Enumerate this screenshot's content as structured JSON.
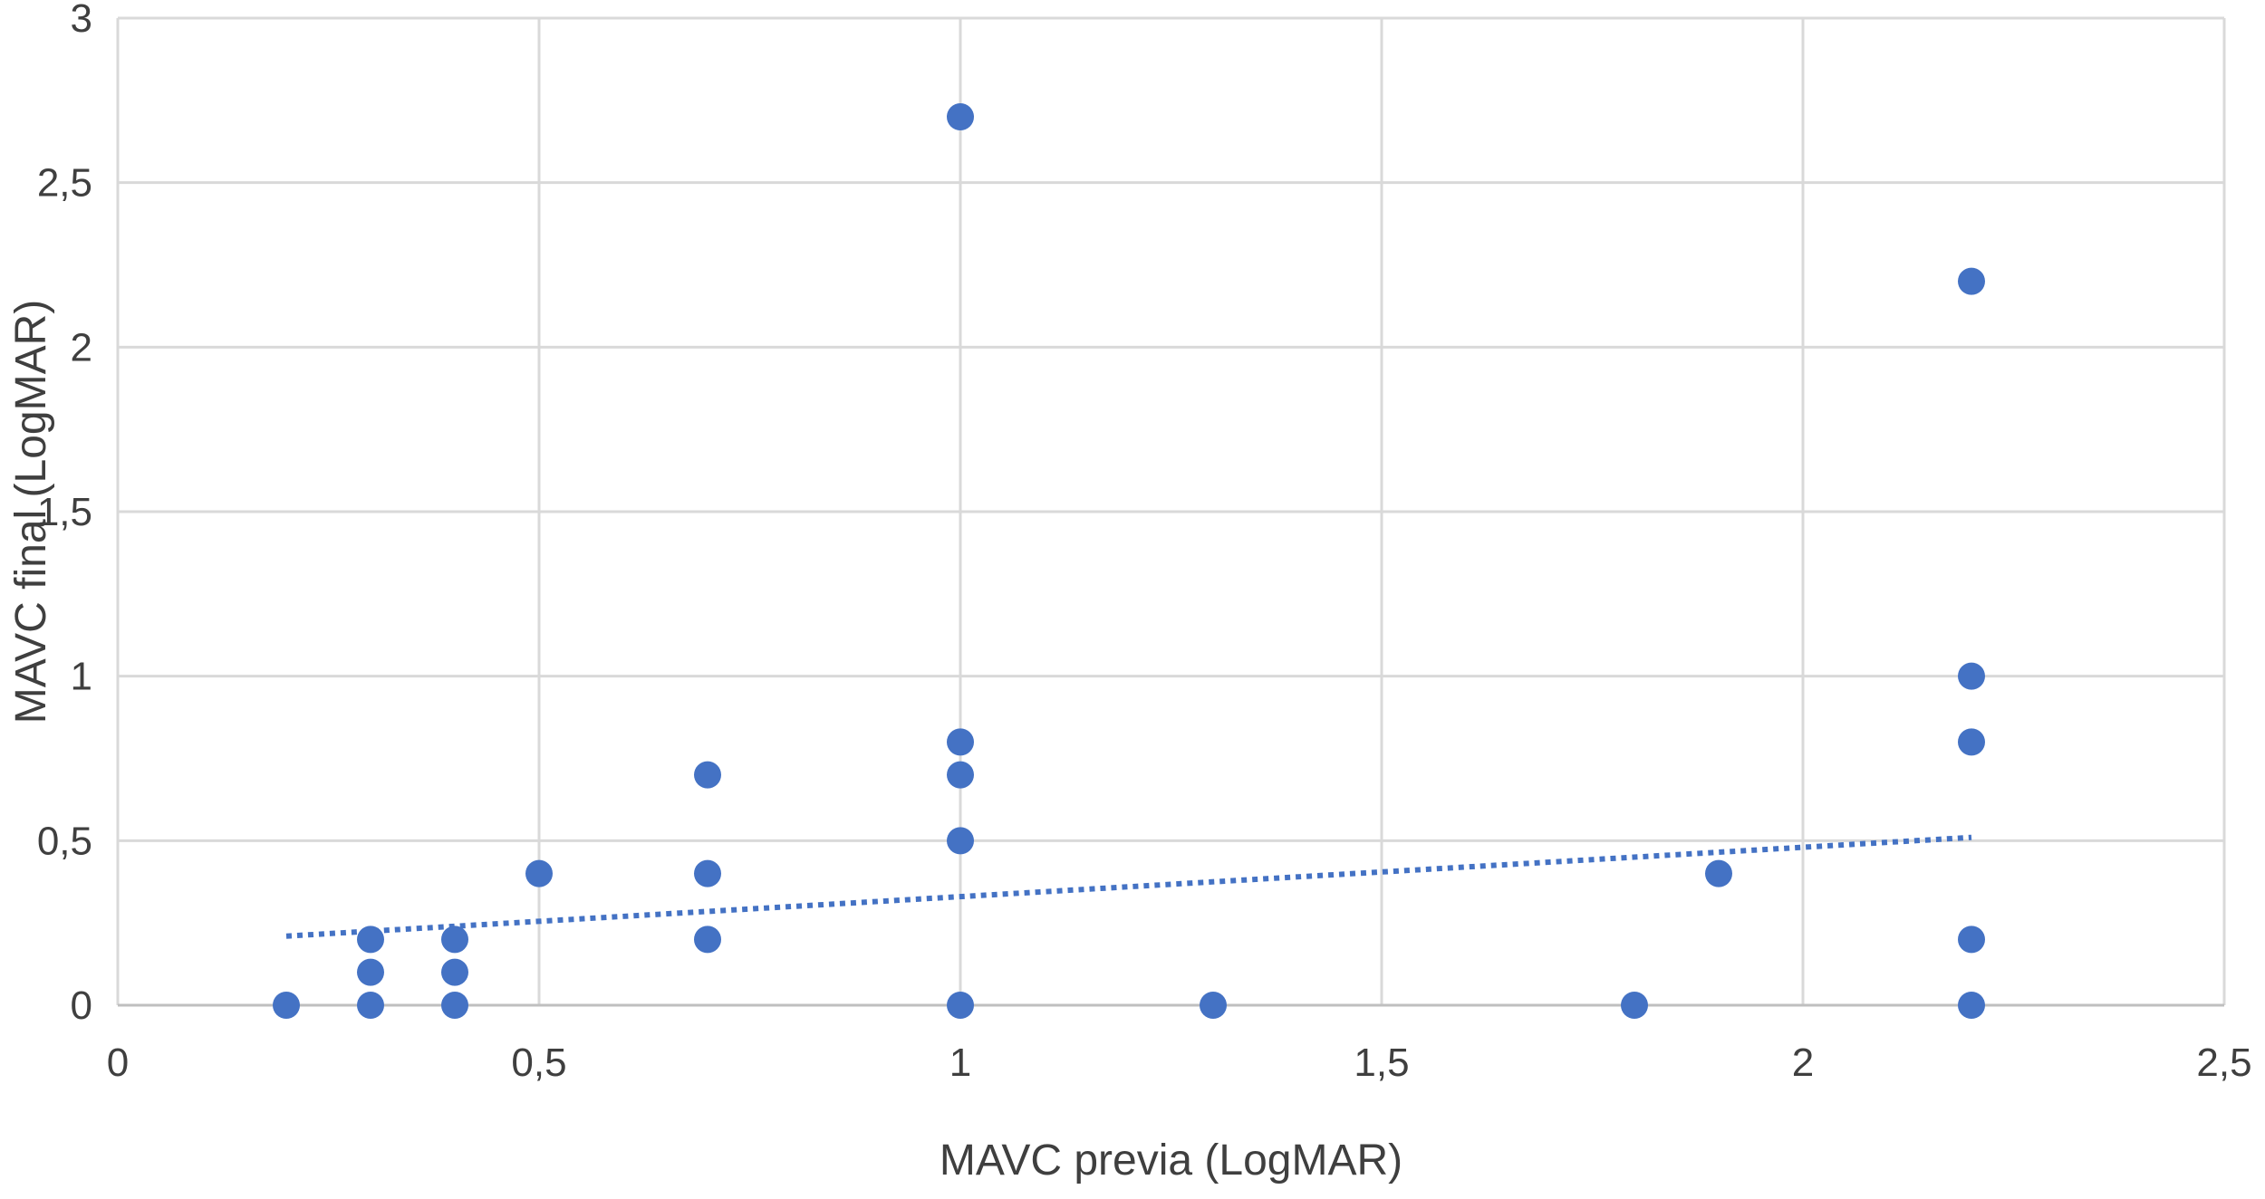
{
  "chart_data": {
    "type": "scatter",
    "title": "",
    "xlabel": "MAVC previa (LogMAR)",
    "ylabel": "MAVC final (LogMAR)",
    "xlim": [
      0,
      2.5
    ],
    "ylim": [
      0,
      3
    ],
    "x_ticks": [
      0,
      0.5,
      1,
      1.5,
      2,
      2.5
    ],
    "y_ticks": [
      0,
      0.5,
      1,
      1.5,
      2,
      2.5,
      3
    ],
    "x_tick_labels": [
      "0",
      "0,5",
      "1",
      "1,5",
      "2",
      "2,5"
    ],
    "y_tick_labels": [
      "0",
      "0,5",
      "1",
      "1,5",
      "2",
      "2,5",
      "3"
    ],
    "grid": true,
    "legend": "none",
    "marker_color": "#4472c4",
    "series": [
      {
        "points": [
          {
            "x": 0.2,
            "y": 0
          },
          {
            "x": 0.3,
            "y": 0
          },
          {
            "x": 0.3,
            "y": 0.1
          },
          {
            "x": 0.3,
            "y": 0.2
          },
          {
            "x": 0.4,
            "y": 0
          },
          {
            "x": 0.4,
            "y": 0.1
          },
          {
            "x": 0.4,
            "y": 0.2
          },
          {
            "x": 0.5,
            "y": 0.4
          },
          {
            "x": 0.7,
            "y": 0.2
          },
          {
            "x": 0.7,
            "y": 0.4
          },
          {
            "x": 0.7,
            "y": 0.7
          },
          {
            "x": 1.0,
            "y": 0
          },
          {
            "x": 1.0,
            "y": 0.5
          },
          {
            "x": 1.0,
            "y": 0.7
          },
          {
            "x": 1.0,
            "y": 0.8
          },
          {
            "x": 1.0,
            "y": 2.7
          },
          {
            "x": 1.3,
            "y": 0
          },
          {
            "x": 1.8,
            "y": 0
          },
          {
            "x": 1.9,
            "y": 0.4
          },
          {
            "x": 2.2,
            "y": 0
          },
          {
            "x": 2.2,
            "y": 0.2
          },
          {
            "x": 2.2,
            "y": 0.8
          },
          {
            "x": 2.2,
            "y": 1.0
          },
          {
            "x": 2.2,
            "y": 2.2
          }
        ]
      }
    ],
    "trendline": {
      "type": "linear",
      "style": "dotted",
      "color": "#4472c4",
      "x_start": 0.2,
      "y_start": 0.21,
      "x_end": 2.2,
      "y_end": 0.51
    }
  }
}
